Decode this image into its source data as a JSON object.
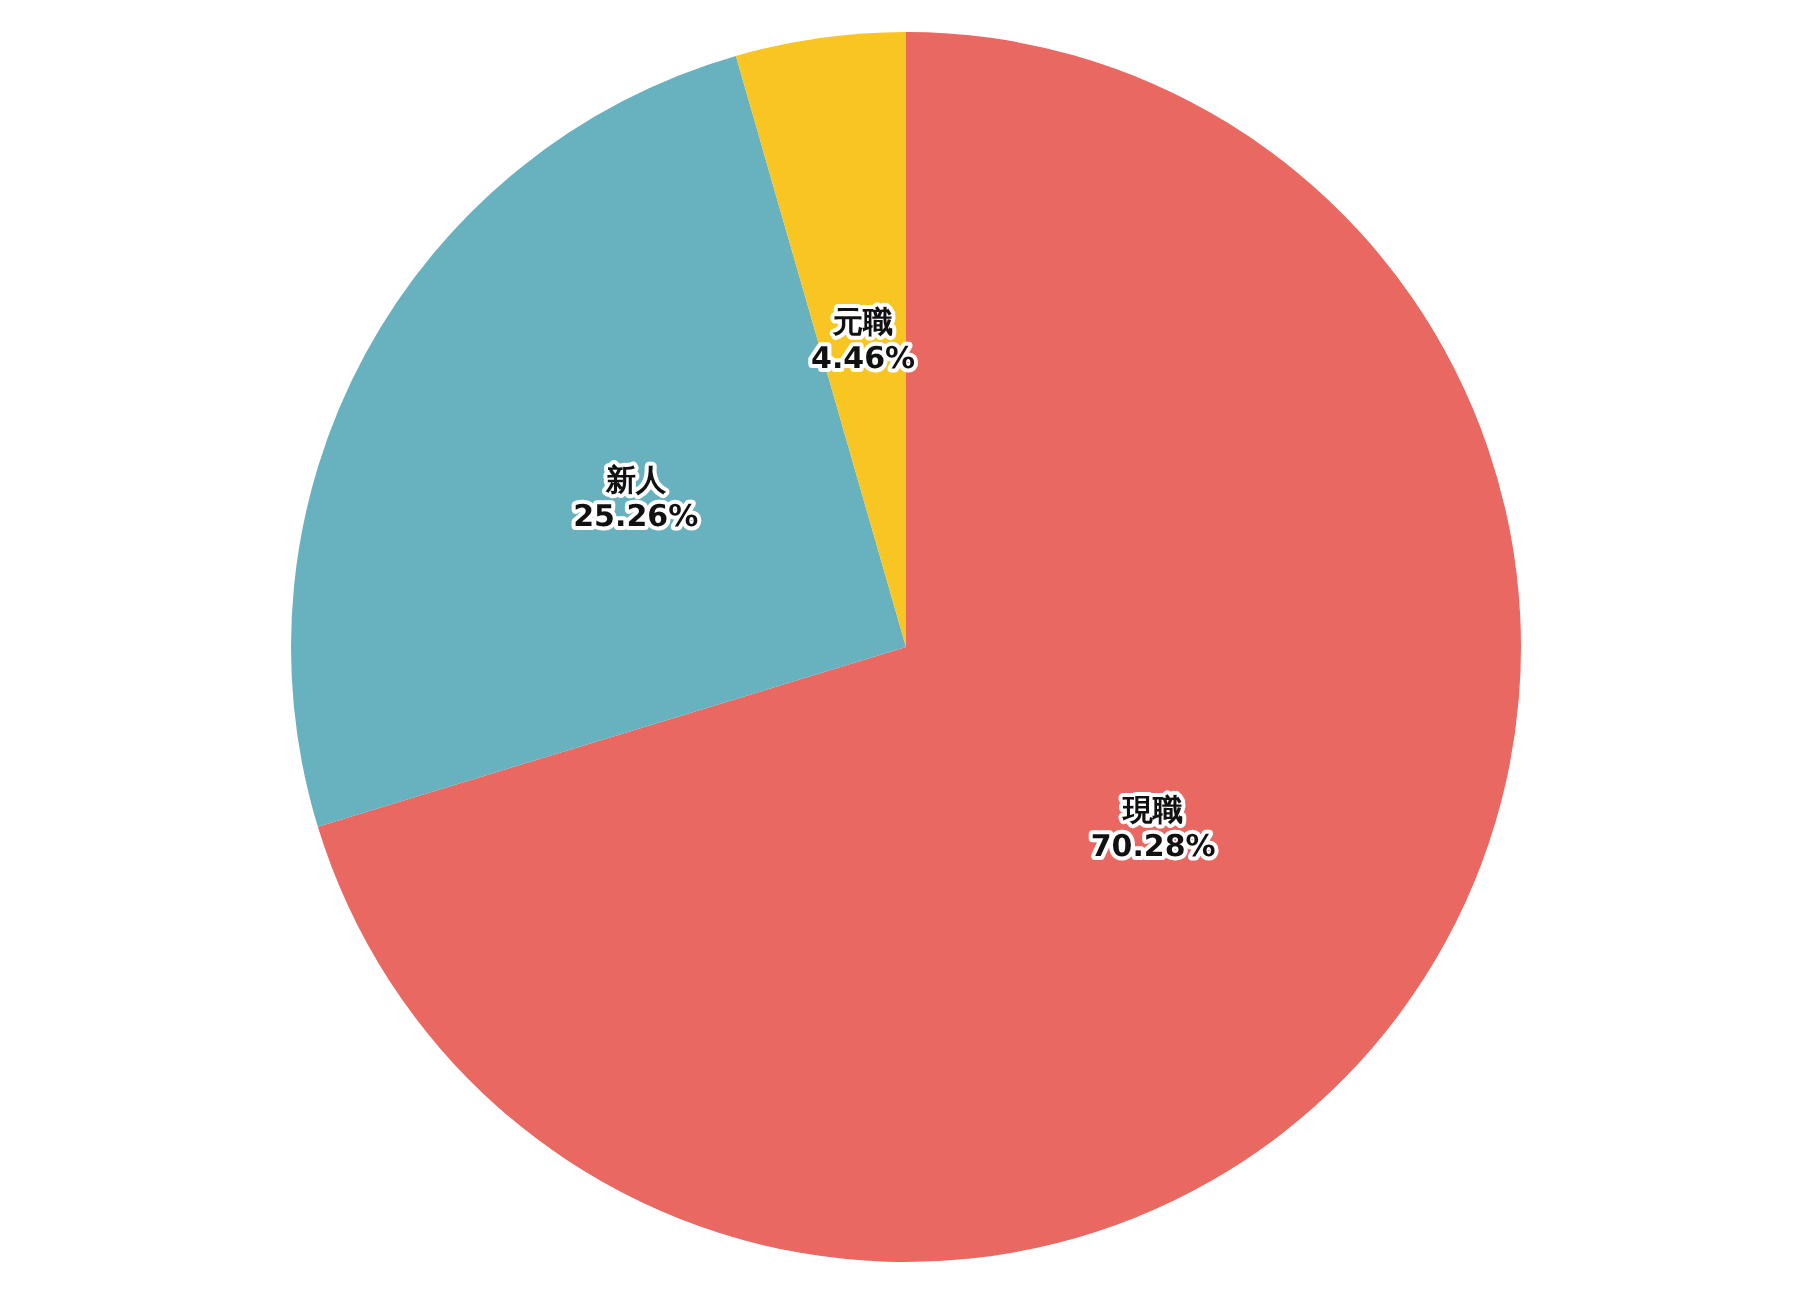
{
  "chart_data": {
    "type": "pie",
    "categories": [
      "現職",
      "新人",
      "元職"
    ],
    "values": [
      70.28,
      25.26,
      4.46
    ],
    "value_labels": [
      "70.28%",
      "25.26%",
      "4.46%"
    ],
    "colors": [
      "#e96862",
      "#68b1bf",
      "#f8c522"
    ],
    "legend": false
  }
}
